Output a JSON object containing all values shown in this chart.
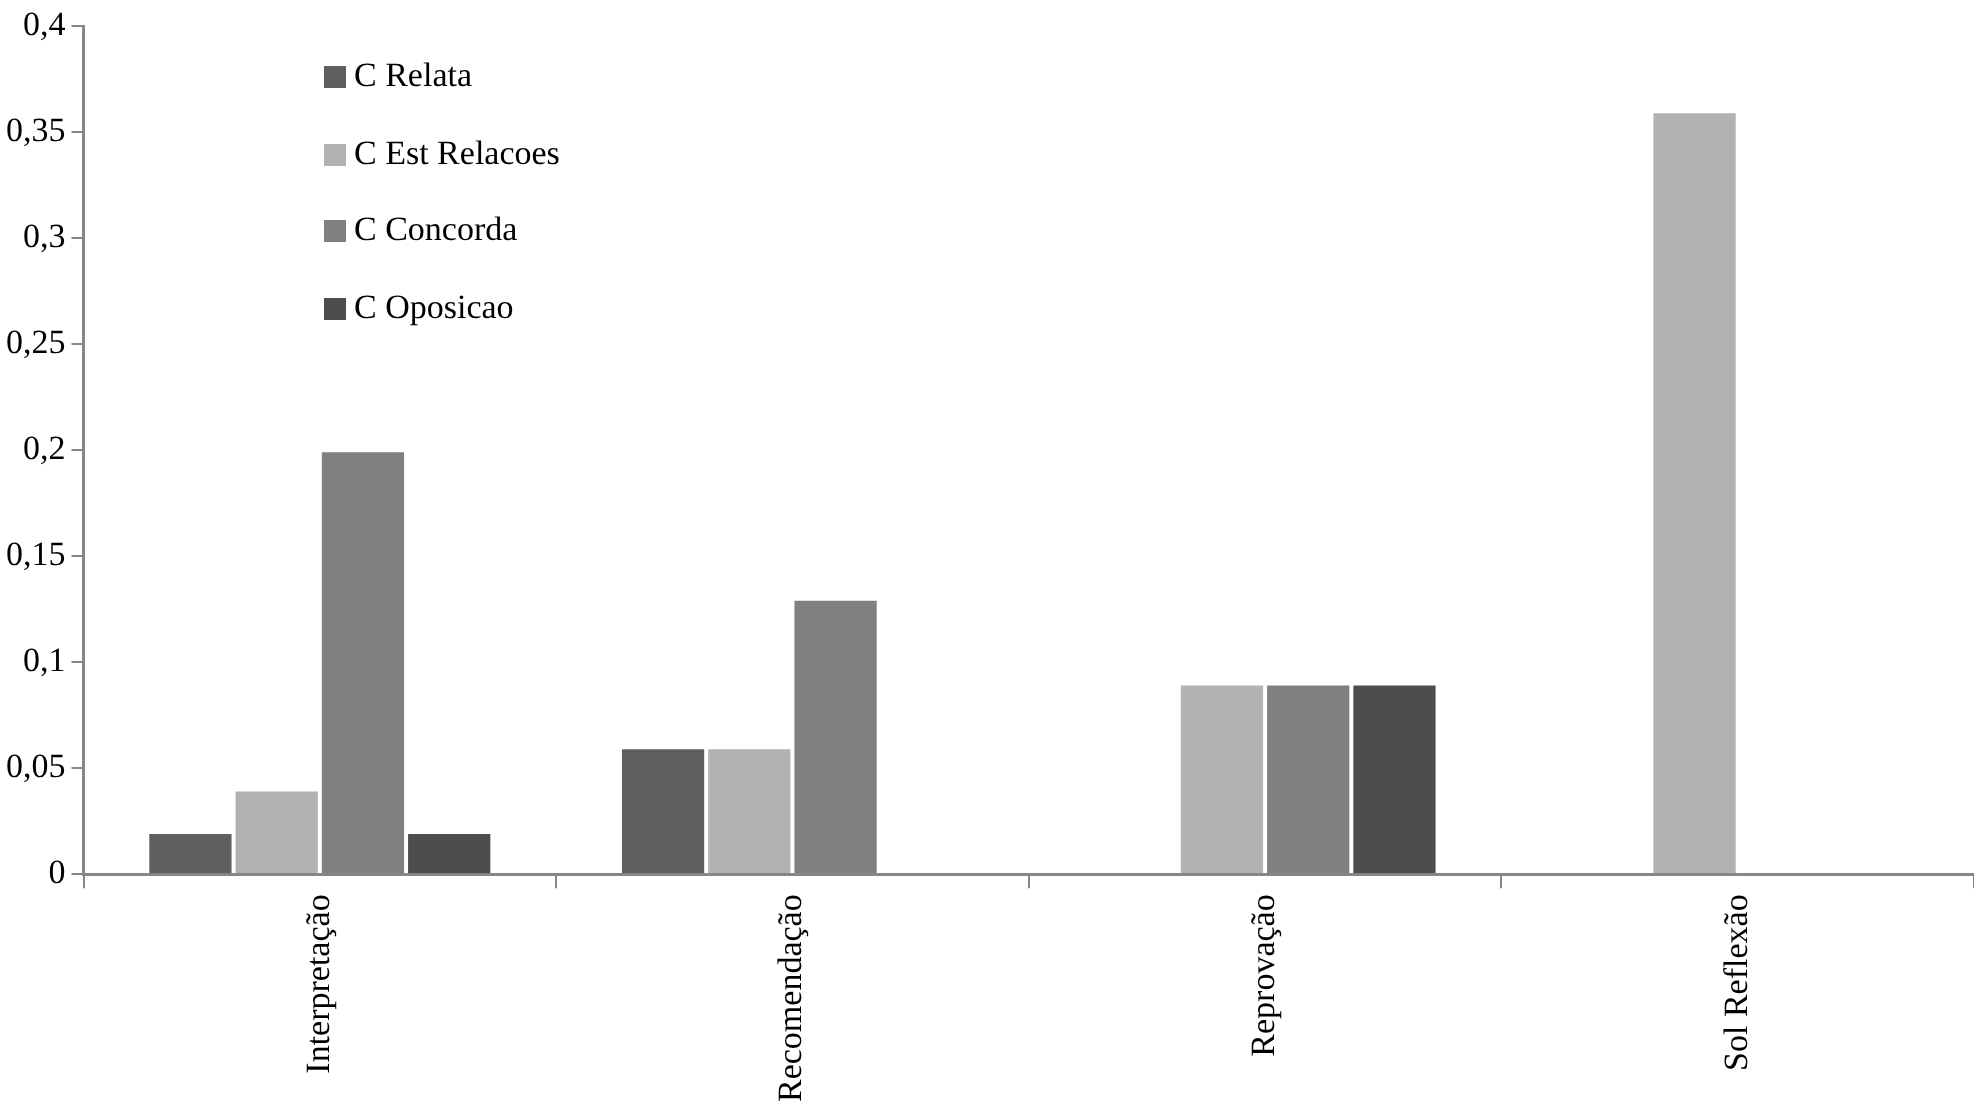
{
  "chart_data": {
    "type": "bar",
    "categories": [
      "Interpretação",
      "Recomendação",
      "Reprovação",
      "Sol Reflexão"
    ],
    "series": [
      {
        "name": "C Relata",
        "color": "#5f5f5f",
        "values": [
          0.02,
          0.06,
          0,
          0
        ]
      },
      {
        "name": "C Est Relacoes",
        "color": "#b2b2b2",
        "values": [
          0.04,
          0.06,
          0.09,
          0.36
        ]
      },
      {
        "name": "C Concorda",
        "color": "#808080",
        "values": [
          0.2,
          0.13,
          0.09,
          0
        ]
      },
      {
        "name": "C Oposicao",
        "color": "#4d4d4d",
        "values": [
          0.02,
          0,
          0.09,
          0
        ]
      }
    ],
    "ylim": [
      0,
      0.4
    ],
    "yticks": [
      0,
      {
        "value": 0.05,
        "label": "0,05"
      },
      {
        "value": 0.1,
        "label": "0,1"
      },
      {
        "value": 0.15,
        "label": "0,15"
      },
      {
        "value": 0.2,
        "label": "0,2"
      },
      {
        "value": 0.25,
        "label": "0,25"
      },
      {
        "value": 0.3,
        "label": "0,3"
      },
      {
        "value": 0.35,
        "label": "0,35"
      },
      {
        "value": 0.4,
        "label": "0,4"
      }
    ],
    "grid": false,
    "legend": "top left"
  }
}
